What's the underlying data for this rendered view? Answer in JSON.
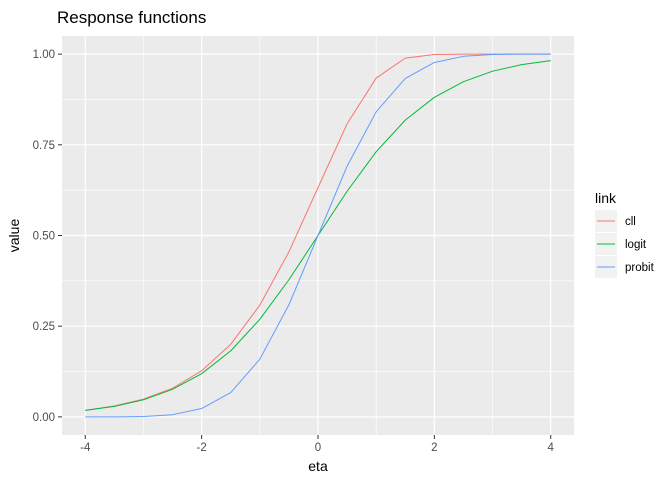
{
  "chart_data": {
    "type": "line",
    "title": "Response functions",
    "xlabel": "eta",
    "ylabel": "value",
    "xlim": [
      -4.4,
      4.4
    ],
    "ylim": [
      -0.05,
      1.05
    ],
    "x_ticks": [
      -4,
      -2,
      0,
      2,
      4
    ],
    "x_tick_labels": [
      "-4",
      "-2",
      "0",
      "2",
      "4"
    ],
    "y_ticks": [
      0,
      0.25,
      0.5,
      0.75,
      1
    ],
    "y_tick_labels": [
      "0.00",
      "0.25",
      "0.50",
      "0.75",
      "1.00"
    ],
    "grid": true,
    "legend": {
      "title": "link",
      "position": "right"
    },
    "x": [
      -4,
      -3.5,
      -3,
      -2.5,
      -2,
      -1.5,
      -1,
      -0.5,
      0,
      0.5,
      1,
      1.5,
      2,
      2.5,
      3,
      3.5,
      4
    ],
    "series": [
      {
        "name": "cll",
        "color": "#F8766D",
        "values": [
          0.018,
          0.03,
          0.049,
          0.079,
          0.127,
          0.2,
          0.308,
          0.455,
          0.632,
          0.808,
          0.934,
          0.989,
          0.999,
          1.0,
          1.0,
          1.0,
          1.0
        ]
      },
      {
        "name": "logit",
        "color": "#00BA38",
        "values": [
          0.018,
          0.029,
          0.047,
          0.076,
          0.119,
          0.182,
          0.269,
          0.378,
          0.5,
          0.622,
          0.731,
          0.818,
          0.881,
          0.924,
          0.953,
          0.971,
          0.982
        ]
      },
      {
        "name": "probit",
        "color": "#619CFF",
        "values": [
          0.0,
          0.0,
          0.001,
          0.006,
          0.023,
          0.067,
          0.159,
          0.309,
          0.5,
          0.691,
          0.841,
          0.933,
          0.977,
          0.994,
          0.999,
          1.0,
          1.0
        ]
      }
    ]
  }
}
